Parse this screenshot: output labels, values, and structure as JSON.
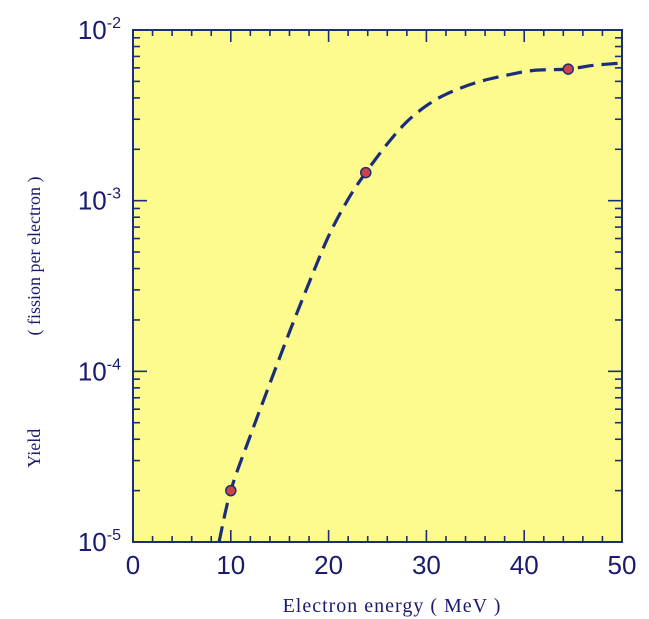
{
  "chart_data": {
    "type": "line",
    "title": "",
    "xlabel": "Electron energy ( MeV )",
    "ylabel_main": "Yield",
    "ylabel_paren": "( fission per electron )",
    "xlim": [
      0,
      50
    ],
    "ylim": [
      1e-05,
      0.01
    ],
    "yscale": "log",
    "x_ticks": [
      "0",
      "10",
      "20",
      "30",
      "40",
      "50"
    ],
    "y_ticks": [
      {
        "base": "10",
        "exp": "-5"
      },
      {
        "base": "10",
        "exp": "-4"
      },
      {
        "base": "10",
        "exp": "-3"
      },
      {
        "base": "10",
        "exp": "-2"
      }
    ],
    "grid": false,
    "background_color": "#fdfa8e",
    "line_color": "#1a2e7a",
    "marker_color": "#d0424a",
    "series": [
      {
        "style": "dashed",
        "x": [
          8.8,
          10,
          12,
          14,
          16,
          18,
          20,
          22,
          23.8,
          26,
          28,
          30,
          32,
          35,
          38,
          41,
          44.5,
          47,
          50
        ],
        "y": [
          1e-05,
          2e-05,
          4.2e-05,
          8.5e-05,
          0.00017,
          0.00033,
          0.00062,
          0.00102,
          0.00146,
          0.00215,
          0.0029,
          0.0036,
          0.0042,
          0.0049,
          0.0054,
          0.0058,
          0.0059,
          0.0062,
          0.0064
        ]
      }
    ],
    "points": [
      {
        "x": 10,
        "y": 2e-05
      },
      {
        "x": 23.8,
        "y": 0.00146
      },
      {
        "x": 44.5,
        "y": 0.0059
      }
    ]
  }
}
